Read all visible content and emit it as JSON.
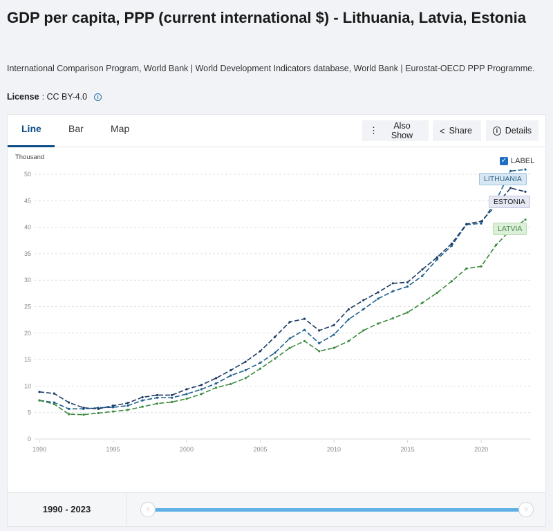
{
  "header": {
    "title": "GDP per capita, PPP (current international $) - Lithuania, Latvia, Estonia",
    "source": "International Comparison Program, World Bank | World Development Indicators database, World Bank | Eurostat-OECD PPP Programme.",
    "license_label": "License",
    "license_value": " : CC BY-4.0",
    "info_icon": "i"
  },
  "tabs": [
    {
      "label": "Line",
      "active": true
    },
    {
      "label": "Bar",
      "active": false
    },
    {
      "label": "Map",
      "active": false
    }
  ],
  "toolbar": {
    "also_show": "Also Show",
    "share": "Share",
    "details": "Details",
    "also_show_icon": "⋮",
    "share_icon": "<",
    "details_icon": "i"
  },
  "label_toggle": {
    "text": "LABEL",
    "checked": true,
    "check_glyph": "✓"
  },
  "footer": {
    "range_text": "1990 - 2023",
    "range_start": 1990,
    "range_end": 2023,
    "handle_glyph": "|||"
  },
  "chart_data": {
    "type": "line",
    "title": "GDP per capita, PPP (current international $)",
    "ylabel": "Thousand",
    "xlabel": "",
    "x": [
      1990,
      1991,
      1992,
      1993,
      1994,
      1995,
      1996,
      1997,
      1998,
      1999,
      2000,
      2001,
      2002,
      2003,
      2004,
      2005,
      2006,
      2007,
      2008,
      2009,
      2010,
      2011,
      2012,
      2013,
      2014,
      2015,
      2016,
      2017,
      2018,
      2019,
      2020,
      2021,
      2022,
      2023
    ],
    "xticks": [
      1990,
      1995,
      2000,
      2005,
      2010,
      2015,
      2020
    ],
    "yticks": [
      0,
      5,
      10,
      15,
      20,
      25,
      30,
      35,
      40,
      45,
      50
    ],
    "ylim": [
      0,
      50
    ],
    "xlim": [
      1990,
      2023
    ],
    "grid": true,
    "series": [
      {
        "name": "LITHUANIA",
        "color": "#1d5f8f",
        "label_bg": "#d7e7f3",
        "label_border": "#9fc4e0",
        "label_color": "#2b5d82",
        "values": [
          7.3,
          6.9,
          5.7,
          5.7,
          5.9,
          6.0,
          6.3,
          7.3,
          7.8,
          7.8,
          8.5,
          9.4,
          10.5,
          12.0,
          13.0,
          14.4,
          16.3,
          19.0,
          20.6,
          18.1,
          19.7,
          22.6,
          24.5,
          26.5,
          27.9,
          28.8,
          30.8,
          33.9,
          36.5,
          40.5,
          40.7,
          45.0,
          50.6,
          50.9
        ]
      },
      {
        "name": "ESTONIA",
        "color": "#1b3a63",
        "label_bg": "#e6e8f4",
        "label_border": "#c2c6de",
        "label_color": "#222",
        "values": [
          8.9,
          8.6,
          6.9,
          5.9,
          5.7,
          6.3,
          6.8,
          7.9,
          8.3,
          8.3,
          9.4,
          10.2,
          11.5,
          13.0,
          14.6,
          16.6,
          19.3,
          22.1,
          22.7,
          20.5,
          21.5,
          24.5,
          26.2,
          27.7,
          29.4,
          29.6,
          32.0,
          34.3,
          36.9,
          40.6,
          41.1,
          44.1,
          47.4,
          46.7
        ]
      },
      {
        "name": "LATVIA",
        "color": "#3b8a3e",
        "label_bg": "#dcefd8",
        "label_border": "#b6dbaf",
        "label_color": "#4a8a4a",
        "values": [
          7.3,
          6.6,
          4.7,
          4.6,
          4.9,
          5.2,
          5.5,
          6.1,
          6.7,
          7.0,
          7.6,
          8.5,
          9.7,
          10.4,
          11.5,
          13.3,
          15.2,
          17.2,
          18.5,
          16.6,
          17.2,
          18.5,
          20.5,
          21.8,
          22.8,
          23.9,
          25.7,
          27.6,
          29.8,
          32.2,
          32.6,
          36.6,
          39.5,
          41.4
        ]
      }
    ]
  }
}
